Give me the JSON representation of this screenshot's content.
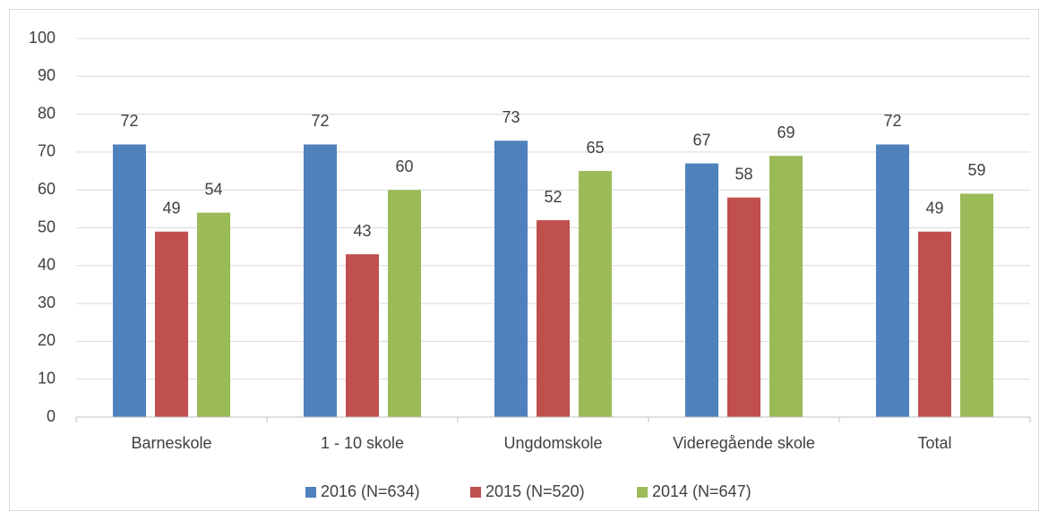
{
  "chart_data": {
    "type": "bar",
    "categories": [
      "Barneskole",
      "1 - 10 skole",
      "Ungdomskole",
      "Videregående skole",
      "Total"
    ],
    "series": [
      {
        "name": "2016 (N=634)",
        "color": "#4f81bd",
        "values": [
          72,
          72,
          73,
          67,
          72
        ]
      },
      {
        "name": "2015 (N=520)",
        "color": "#c0504d",
        "values": [
          49,
          43,
          52,
          58,
          49
        ]
      },
      {
        "name": "2014 (N=647)",
        "color": "#9bbb59",
        "values": [
          54,
          60,
          65,
          69,
          59
        ]
      }
    ],
    "ylim": [
      0,
      100
    ],
    "yticks": [
      0,
      10,
      20,
      30,
      40,
      50,
      60,
      70,
      80,
      90,
      100
    ],
    "grid": true,
    "legend": "bottom"
  }
}
